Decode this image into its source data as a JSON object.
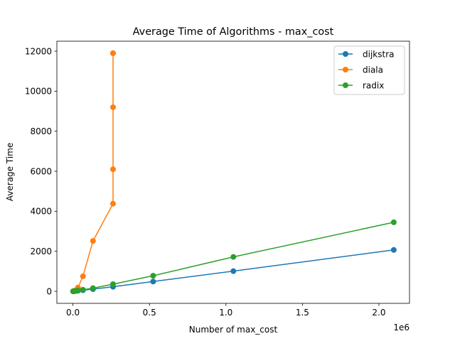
{
  "chart_data": {
    "type": "line",
    "title": "Average Time of Algorithms - max_cost",
    "xlabel": "Number of max_cost",
    "ylabel": "Average Time",
    "x_offset_text": "1e6",
    "xlim": [
      -0.105,
      2.2
    ],
    "ylim": [
      -600,
      12500
    ],
    "xticks": [
      0.0,
      0.5,
      1.0,
      1.5,
      2.0
    ],
    "xtick_labels": [
      "0.0",
      "0.5",
      "1.0",
      "1.5",
      "2.0"
    ],
    "yticks": [
      0,
      2000,
      4000,
      6000,
      8000,
      10000,
      12000
    ],
    "ytick_labels": [
      "0",
      "2000",
      "4000",
      "6000",
      "8000",
      "10000",
      "12000"
    ],
    "x_scale": 1000000,
    "grid": false,
    "legend_position": "top-right",
    "series": [
      {
        "name": "dijkstra",
        "color": "#1f77b4",
        "x": [
          1024,
          2048,
          4096,
          8192,
          16384,
          32768,
          65536,
          131072,
          262144,
          524288,
          1048576,
          2097152
        ],
        "y": [
          1,
          2,
          4,
          8,
          15,
          30,
          55,
          110,
          230,
          490,
          1010,
          2070
        ]
      },
      {
        "name": "diala",
        "color": "#ff7f0e",
        "x": [
          1024,
          2048,
          4096,
          8192,
          16384,
          32768,
          65536,
          131072,
          262144,
          262144,
          262144,
          262144,
          262144
        ],
        "y": [
          3,
          6,
          12,
          25,
          50,
          190,
          750,
          2520,
          4380,
          6100,
          9200,
          11900,
          11900
        ]
      },
      {
        "name": "radix",
        "color": "#2ca02c",
        "x": [
          1024,
          2048,
          4096,
          8192,
          16384,
          32768,
          65536,
          131072,
          262144,
          524288,
          1048576,
          2097152
        ],
        "y": [
          1,
          2,
          5,
          10,
          20,
          40,
          80,
          160,
          360,
          780,
          1720,
          3450
        ]
      }
    ]
  }
}
